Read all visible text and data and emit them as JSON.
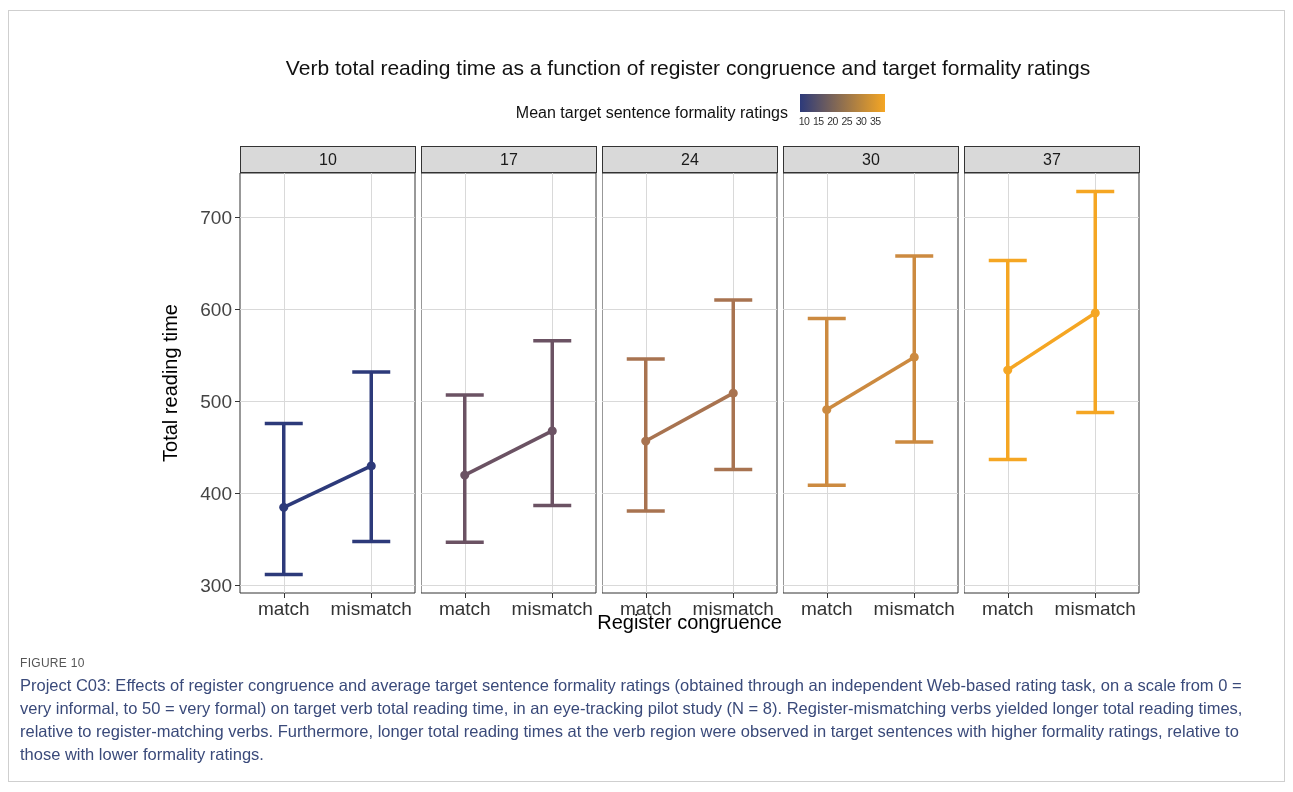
{
  "chart_data": [
    {
      "type": "line",
      "title": "10",
      "subtitle": "Verb total reading time as a function of register congruence and target formality ratings",
      "ylabel": "Total reading time",
      "clabel": "Mean target sentence formality ratings",
      "clim": [
        10,
        37
      ],
      "cticks": [
        10,
        15,
        20,
        25,
        30,
        35
      ],
      "categories": [
        "match",
        "mismatch"
      ],
      "series": [
        {
          "color": "#2d3a7a",
          "values": [
            385,
            430
          ],
          "errors": [
            [
              312,
              476
            ],
            [
              348,
              532
            ]
          ]
        }
      ],
      "ylim": [
        292,
        748
      ],
      "yticks": [
        300,
        400,
        500,
        600,
        700
      ],
      "grid": true,
      "marker": "circle",
      "annotations": [
        "FIGURE 10",
        "Project C03: Effects of register congruence and average target sentence formality ratings (obtained through an independent Web-based rating task, on a scale from 0 = very informal, to 50 = very formal) on target verb total reading time, in an eye-tracking pilot study (N = 8). Register-mismatching verbs yielded longer total reading times, relative to register-matching verbs. Furthermore, longer total reading times at the verb region were observed in target sentences with higher formality ratings, relative to those with lower formality ratings."
      ]
    },
    {
      "type": "line",
      "title": "17",
      "categories": [
        "match",
        "mismatch"
      ],
      "series": [
        {
          "color": "#6b5263",
          "values": [
            420,
            468
          ],
          "errors": [
            [
              347,
              507
            ],
            [
              387,
              566
            ]
          ]
        }
      ],
      "ylim": [
        292,
        748
      ],
      "yticks": [
        300,
        400,
        500,
        600,
        700
      ],
      "grid": true,
      "marker": "circle",
      "tick_labels": "x"
    },
    {
      "type": "line",
      "title": "24",
      "xlabel": "Register congruence",
      "categories": [
        "match",
        "mismatch"
      ],
      "series": [
        {
          "color": "#a87350",
          "values": [
            457,
            509
          ],
          "errors": [
            [
              381,
              546
            ],
            [
              426,
              610
            ]
          ]
        }
      ],
      "ylim": [
        292,
        748
      ],
      "yticks": [
        300,
        400,
        500,
        600,
        700
      ],
      "grid": true,
      "marker": "circle",
      "tick_labels": "x"
    },
    {
      "type": "line",
      "title": "30",
      "categories": [
        "match",
        "mismatch"
      ],
      "series": [
        {
          "color": "#cc8a40",
          "values": [
            491,
            548
          ],
          "errors": [
            [
              409,
              590
            ],
            [
              456,
              658
            ]
          ]
        }
      ],
      "ylim": [
        292,
        748
      ],
      "yticks": [
        300,
        400,
        500,
        600,
        700
      ],
      "grid": true,
      "marker": "circle",
      "tick_labels": "x"
    },
    {
      "type": "line",
      "title": "37",
      "categories": [
        "match",
        "mismatch"
      ],
      "series": [
        {
          "color": "#f5a623",
          "values": [
            534,
            596
          ],
          "errors": [
            [
              437,
              653
            ],
            [
              488,
              728
            ]
          ]
        }
      ],
      "ylim": [
        292,
        748
      ],
      "yticks": [
        300,
        400,
        500,
        600,
        700
      ],
      "grid": true,
      "marker": "circle",
      "tick_labels": "x"
    }
  ]
}
